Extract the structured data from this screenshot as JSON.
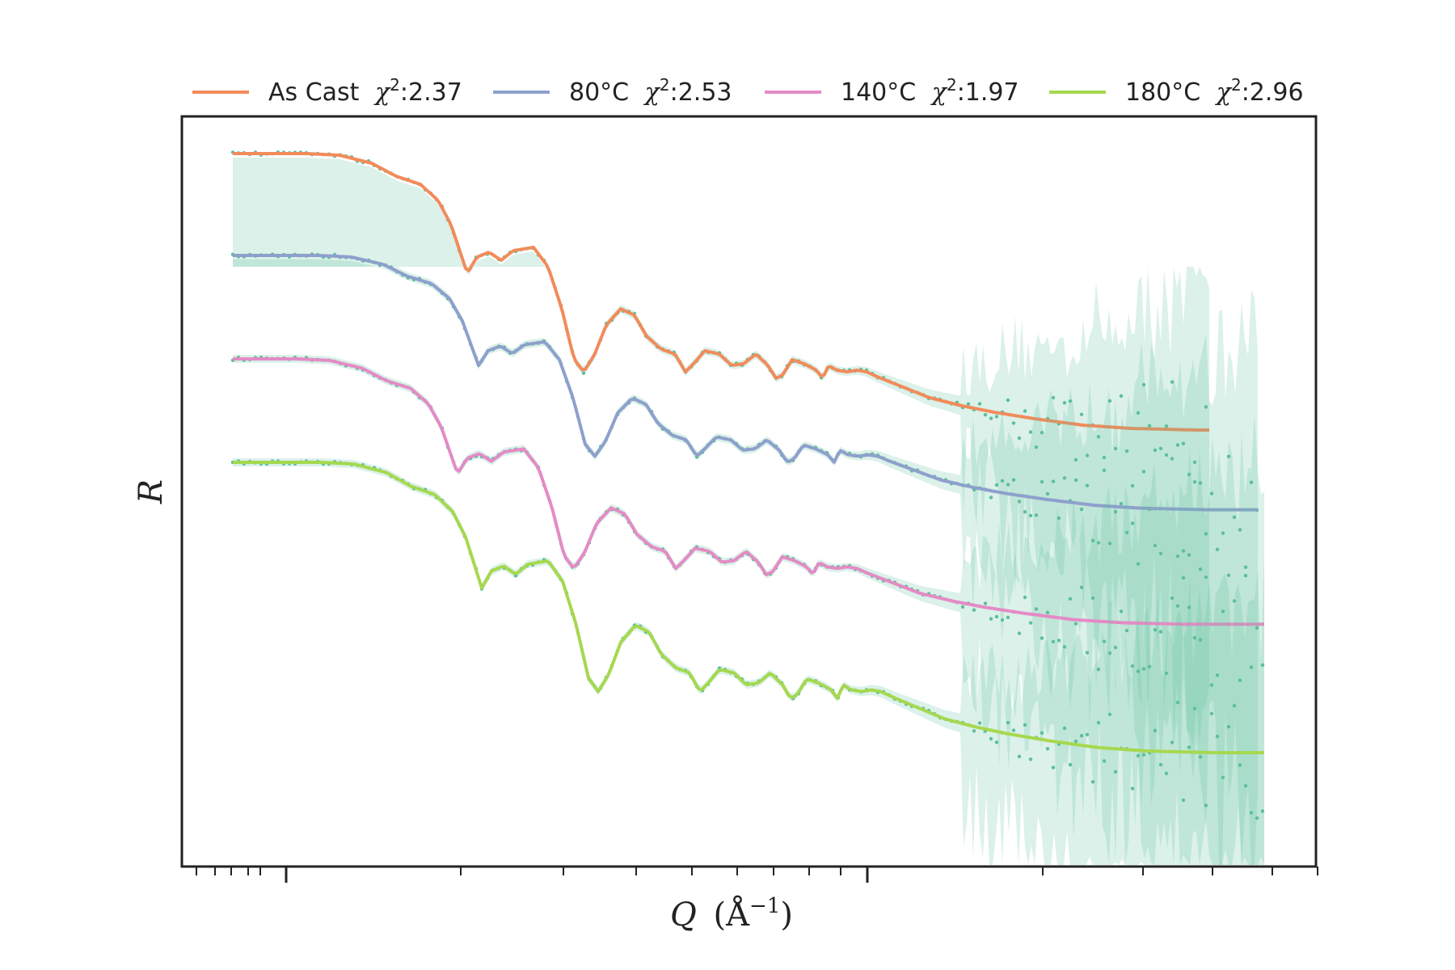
{
  "chart_data": {
    "type": "line",
    "x_scale": "log",
    "y_scale": "log",
    "xlabel": "Q (Å⁻¹)",
    "ylabel": "R",
    "y_ticks_visible": false,
    "grid": false,
    "legend_position": "top",
    "data_point_color": "#5bbf9a",
    "series": [
      {
        "name": "As Cast",
        "chi2": "2.37",
        "color": "#f28b5b"
      },
      {
        "name": "80°C",
        "chi2": "2.53",
        "color": "#8ea0cc"
      },
      {
        "name": "140°C",
        "chi2": "1.97",
        "color": "#e48bc6"
      },
      {
        "name": "180°C",
        "chi2": "2.96",
        "color": "#a6d84f"
      }
    ]
  },
  "legend": {
    "entries": [
      {
        "label": "As Cast",
        "chi_prefix": "χ",
        "chi_sup": "2",
        "chi_value": ":2.37"
      },
      {
        "label": "80°C",
        "chi_prefix": "χ",
        "chi_sup": "2",
        "chi_value": ":2.53"
      },
      {
        "label": "140°C",
        "chi_prefix": "χ",
        "chi_sup": "2",
        "chi_value": ":1.97"
      },
      {
        "label": "180°C",
        "chi_prefix": "χ",
        "chi_sup": "2",
        "chi_value": ":2.96"
      }
    ]
  },
  "axes": {
    "x_label_main": "Q",
    "x_label_unit_open": "(Å",
    "x_label_unit_exp": "−1",
    "x_label_unit_close": ")",
    "y_label": "R"
  }
}
